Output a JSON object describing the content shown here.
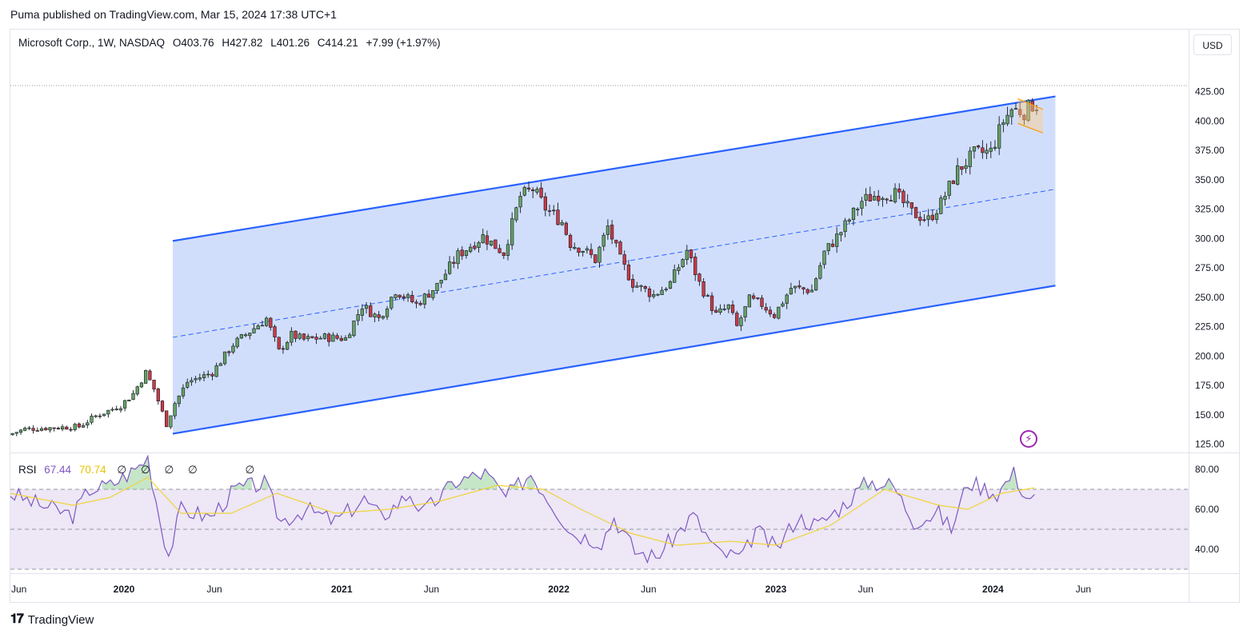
{
  "header": {
    "publisher_line": "Puma published on TradingView.com, Mar 15, 2024 17:38 UTC+1"
  },
  "legend": {
    "symbol": "Microsoft Corp., 1W, NASDAQ",
    "open": "O403.76",
    "high": "H427.82",
    "low": "L401.26",
    "close": "C414.21",
    "change": "+7.99 (+1.97%)"
  },
  "rsi_legend": {
    "name": "RSI",
    "value": "67.44",
    "ma_value": "70.74",
    "na1": "∅",
    "na2": "∅",
    "na3": "∅",
    "na4": "∅",
    "na5": "∅"
  },
  "currency_button": "USD",
  "branding": "TradingView",
  "colors": {
    "up": "#66a266",
    "down": "#c93a46",
    "channel": "#2962ff",
    "channel_fill": "#cfdcfb",
    "rsi_line": "#7e57c2",
    "rsi_ma": "#f0d43a",
    "rsi_band": "#ede7f6"
  },
  "chart_data": [
    {
      "type": "candlestick",
      "title": "Microsoft Corp., 1W, NASDAQ",
      "y_axis_ticks": [
        "425.00",
        "400.00",
        "375.00",
        "350.00",
        "325.00",
        "300.00",
        "275.00",
        "250.00",
        "225.00",
        "200.00",
        "175.00",
        "150.00",
        "125.00"
      ],
      "ylim": [
        118,
        452
      ],
      "x_axis_ticks": [
        {
          "label": "Jun",
          "bold": false
        },
        {
          "label": "2020",
          "bold": true
        },
        {
          "label": "Jun",
          "bold": false
        },
        {
          "label": "2021",
          "bold": true
        },
        {
          "label": "Jun",
          "bold": false
        },
        {
          "label": "2022",
          "bold": true
        },
        {
          "label": "Jun",
          "bold": false
        },
        {
          "label": "2023",
          "bold": true
        },
        {
          "label": "Jun",
          "bold": false
        },
        {
          "label": "2024",
          "bold": true
        },
        {
          "label": "Jun",
          "bold": false
        }
      ],
      "xlim": [
        "2019-06-24",
        "2024-11-25"
      ],
      "price_path": [
        [
          "2019-06-24",
          133
        ],
        [
          "2019-07-22",
          138
        ],
        [
          "2019-09-02",
          139
        ],
        [
          "2019-10-21",
          140
        ],
        [
          "2019-11-18",
          149
        ],
        [
          "2019-12-30",
          158
        ],
        [
          "2020-01-20",
          168
        ],
        [
          "2020-02-10",
          186
        ],
        [
          "2020-02-24",
          172
        ],
        [
          "2020-03-16",
          142
        ],
        [
          "2020-03-30",
          160
        ],
        [
          "2020-04-20",
          178
        ],
        [
          "2020-06-01",
          186
        ],
        [
          "2020-07-06",
          210
        ],
        [
          "2020-08-31",
          232
        ],
        [
          "2020-09-21",
          204
        ],
        [
          "2020-10-12",
          218
        ],
        [
          "2020-11-02",
          214
        ],
        [
          "2020-12-07",
          216
        ],
        [
          "2021-01-11",
          215
        ],
        [
          "2021-02-08",
          243
        ],
        [
          "2021-03-08",
          232
        ],
        [
          "2021-04-05",
          256
        ],
        [
          "2021-05-10",
          244
        ],
        [
          "2021-06-14",
          260
        ],
        [
          "2021-07-19",
          286
        ],
        [
          "2021-08-30",
          302
        ],
        [
          "2021-10-04",
          288
        ],
        [
          "2021-11-01",
          336
        ],
        [
          "2021-11-22",
          342
        ],
        [
          "2021-12-13",
          326
        ],
        [
          "2022-01-10",
          314
        ],
        [
          "2022-01-24",
          296
        ],
        [
          "2022-02-14",
          291
        ],
        [
          "2022-03-07",
          282
        ],
        [
          "2022-03-28",
          310
        ],
        [
          "2022-04-18",
          282
        ],
        [
          "2022-05-09",
          262
        ],
        [
          "2022-06-13",
          252
        ],
        [
          "2022-07-11",
          262
        ],
        [
          "2022-08-08",
          290
        ],
        [
          "2022-08-29",
          262
        ],
        [
          "2022-09-26",
          235
        ],
        [
          "2022-10-17",
          242
        ],
        [
          "2022-10-31",
          225
        ],
        [
          "2022-11-21",
          248
        ],
        [
          "2022-12-12",
          244
        ],
        [
          "2023-01-02",
          235
        ],
        [
          "2023-01-30",
          258
        ],
        [
          "2023-03-06",
          256
        ],
        [
          "2023-03-27",
          288
        ],
        [
          "2023-04-24",
          306
        ],
        [
          "2023-05-29",
          332
        ],
        [
          "2023-06-26",
          338
        ],
        [
          "2023-07-24",
          338
        ],
        [
          "2023-08-21",
          322
        ],
        [
          "2023-09-18",
          316
        ],
        [
          "2023-10-09",
          330
        ],
        [
          "2023-11-06",
          358
        ],
        [
          "2023-12-04",
          372
        ],
        [
          "2024-01-01",
          374
        ],
        [
          "2024-01-22",
          400
        ],
        [
          "2024-02-05",
          410
        ],
        [
          "2024-02-26",
          408
        ],
        [
          "2024-03-11",
          414
        ]
      ],
      "annotations": {
        "ascending_channel": {
          "start_date": "2020-03-23",
          "end_date": "2024-04-15",
          "upper": [
            298,
            421
          ],
          "middle": [
            216,
            342
          ],
          "lower": [
            134,
            260
          ]
        },
        "small_channel": {
          "start_date": "2024-02-12",
          "end_date": "2024-03-25",
          "upper": [
            419,
            410
          ],
          "lower": [
            398,
            390
          ]
        }
      }
    },
    {
      "type": "line",
      "title": "RSI",
      "y_axis_ticks": [
        "80.00",
        "60.00",
        "40.00"
      ],
      "ylim": [
        28,
        88
      ],
      "levels": [
        70,
        50,
        30
      ],
      "rsi_path": [
        [
          "2019-06-24",
          68
        ],
        [
          "2019-08-05",
          63
        ],
        [
          "2019-10-07",
          57
        ],
        [
          "2019-11-04",
          70
        ],
        [
          "2019-12-09",
          72
        ],
        [
          "2020-01-20",
          80
        ],
        [
          "2020-02-10",
          86
        ],
        [
          "2020-03-02",
          54
        ],
        [
          "2020-03-16",
          37
        ],
        [
          "2020-04-06",
          60
        ],
        [
          "2020-05-25",
          56
        ],
        [
          "2020-07-06",
          70
        ],
        [
          "2020-08-24",
          73
        ],
        [
          "2020-09-21",
          54
        ],
        [
          "2020-11-02",
          60
        ],
        [
          "2020-12-21",
          54
        ],
        [
          "2021-02-08",
          65
        ],
        [
          "2021-03-08",
          56
        ],
        [
          "2021-04-26",
          68
        ],
        [
          "2021-05-17",
          58
        ],
        [
          "2021-07-12",
          74
        ],
        [
          "2021-08-30",
          78
        ],
        [
          "2021-10-04",
          66
        ],
        [
          "2021-11-15",
          78
        ],
        [
          "2021-12-27",
          60
        ],
        [
          "2022-01-24",
          48
        ],
        [
          "2022-03-14",
          44
        ],
        [
          "2022-04-04",
          56
        ],
        [
          "2022-05-09",
          39
        ],
        [
          "2022-06-13",
          36
        ],
        [
          "2022-08-15",
          57
        ],
        [
          "2022-09-26",
          38
        ],
        [
          "2022-11-07",
          36
        ],
        [
          "2022-11-28",
          50
        ],
        [
          "2023-01-02",
          40
        ],
        [
          "2023-02-06",
          56
        ],
        [
          "2023-03-13",
          52
        ],
        [
          "2023-04-24",
          62
        ],
        [
          "2023-06-05",
          74
        ],
        [
          "2023-07-17",
          72
        ],
        [
          "2023-08-21",
          54
        ],
        [
          "2023-10-02",
          58
        ],
        [
          "2023-10-23",
          50
        ],
        [
          "2023-11-20",
          74
        ],
        [
          "2024-01-08",
          68
        ],
        [
          "2024-02-05",
          78
        ],
        [
          "2024-02-26",
          66
        ],
        [
          "2024-03-11",
          67.44
        ]
      ],
      "rsi_ma_path": [
        [
          "2019-06-24",
          68
        ],
        [
          "2019-10-07",
          62
        ],
        [
          "2019-12-09",
          66
        ],
        [
          "2020-02-10",
          76
        ],
        [
          "2020-04-06",
          58
        ],
        [
          "2020-06-29",
          58
        ],
        [
          "2020-09-14",
          68
        ],
        [
          "2020-12-21",
          58
        ],
        [
          "2021-03-22",
          60
        ],
        [
          "2021-06-14",
          64
        ],
        [
          "2021-09-20",
          72
        ],
        [
          "2021-12-06",
          70
        ],
        [
          "2022-02-07",
          60
        ],
        [
          "2022-05-02",
          48
        ],
        [
          "2022-07-18",
          42
        ],
        [
          "2022-10-17",
          44
        ],
        [
          "2023-01-02",
          42
        ],
        [
          "2023-04-03",
          52
        ],
        [
          "2023-07-03",
          70
        ],
        [
          "2023-10-02",
          62
        ],
        [
          "2023-11-20",
          60
        ],
        [
          "2024-01-15",
          68
        ],
        [
          "2024-03-11",
          70.74
        ]
      ]
    }
  ]
}
